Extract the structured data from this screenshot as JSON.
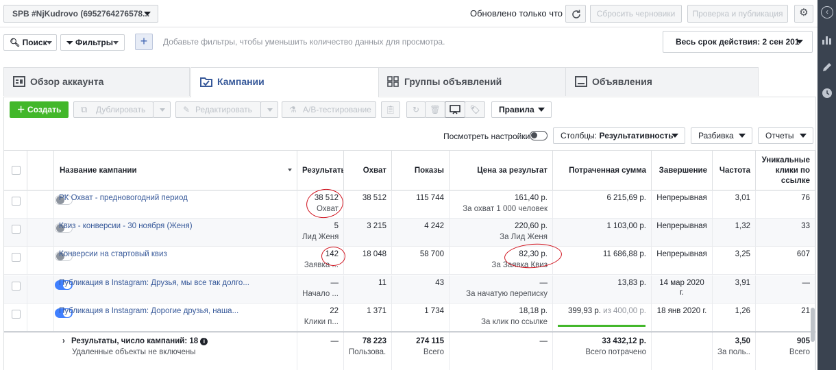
{
  "topbar": {
    "account": "SPB #NjKudrovo (6952764276578...",
    "updated": "Обновлено только что",
    "reset_drafts": "Сбросить черновики",
    "review_publish": "Проверка и публикация"
  },
  "filterbar": {
    "search": "Поиск",
    "filters": "Фильтры",
    "hint": "Добавьте фильтры, чтобы уменьшить количество данных для просмотра.",
    "date_range": "Весь срок действия: 2 сен 201"
  },
  "tabs": [
    {
      "label": "Обзор аккаунта"
    },
    {
      "label": "Кампании"
    },
    {
      "label": "Группы объявлений"
    },
    {
      "label": "Объявления"
    }
  ],
  "toolbar": {
    "create": "Создать",
    "duplicate": "Дублировать",
    "edit": "Редактировать",
    "ab_test": "A/B-тестирование",
    "rules": "Правила",
    "view_settings": "Посмотреть настройки",
    "columns_prefix": "Столбцы:",
    "columns_value": "Результативность",
    "breakdown": "Разбивка",
    "reports": "Отчеты"
  },
  "table": {
    "headers": {
      "name": "Название кампании",
      "results": "Результаты",
      "reach": "Охват",
      "impressions": "Показы",
      "cost": "Цена за результат",
      "spent": "Потраченная сумма",
      "ends": "Завершение",
      "frequency": "Частота",
      "unique_clicks": "Уникальные клики по ссылке"
    },
    "rows": [
      {
        "name": "РК Охват - предновогодний период",
        "active": false,
        "result": "38 512",
        "result_type": "Охват",
        "reach": "38 512",
        "impressions": "115 744",
        "cost": "161,40 р.",
        "cost_type": "За охват 1 000 человек",
        "spent": "6 215,69 р.",
        "ends": "Непрерывная",
        "frequency": "3,01",
        "clicks": "76"
      },
      {
        "name": "Квиз - конверсии - 30 ноября (Женя)",
        "active": false,
        "result": "5",
        "result_type": "Лид Женя",
        "reach": "3 215",
        "impressions": "4 242",
        "cost": "220,60 р.",
        "cost_type": "За Лид Женя",
        "spent": "1 103,00 р.",
        "ends": "Непрерывная",
        "frequency": "1,32",
        "clicks": "33"
      },
      {
        "name": "Конверсии на стартовый квиз",
        "active": false,
        "result": "142",
        "result_type": "Заявка ...",
        "reach": "18 048",
        "impressions": "58 700",
        "cost": "82,30 р.",
        "cost_type": "За Заявка Квиз",
        "spent": "11 686,88 р.",
        "ends": "Непрерывная",
        "frequency": "3,25",
        "clicks": "607"
      },
      {
        "name": "Публикация в Instagram: Друзья, мы все так долго...",
        "active": true,
        "result": "—",
        "result_type": "Начало ...",
        "reach": "11",
        "impressions": "43",
        "cost": "—",
        "cost_type": "За начатую переписку",
        "spent": "13,83 р.",
        "ends": "14 мар 2020 г.",
        "frequency": "3,91",
        "clicks": "—"
      },
      {
        "name": "Публикация в Instagram: Дорогие друзья, наша...",
        "active": true,
        "result": "22",
        "result_type": "Клики п...",
        "reach": "1 371",
        "impressions": "1 734",
        "cost": "18,18 р.",
        "cost_type": "За клик по ссылке",
        "spent": "399,93 р.",
        "spent_budget": "из 400,00 р.",
        "ends": "18 янв 2020 г.",
        "frequency": "1,26",
        "clicks": "21"
      }
    ],
    "totals": {
      "label": "Результаты, число кампаний: 18",
      "note": "Удаленные объекты не включены",
      "result": "—",
      "reach": "78 223",
      "reach_sub": "Пользова...",
      "impressions": "274 115",
      "impressions_sub": "Всего",
      "cost": "—",
      "spent": "33 432,12 р.",
      "spent_sub": "Всего потрачено",
      "frequency": "3,50",
      "frequency_sub": "За поль...",
      "clicks": "905",
      "clicks_sub": "Всего"
    }
  },
  "colors": {
    "accent": "#365899",
    "create_green": "#42b72a",
    "annotation_red": "#d0121d",
    "toggle_on": "#4080ff"
  }
}
